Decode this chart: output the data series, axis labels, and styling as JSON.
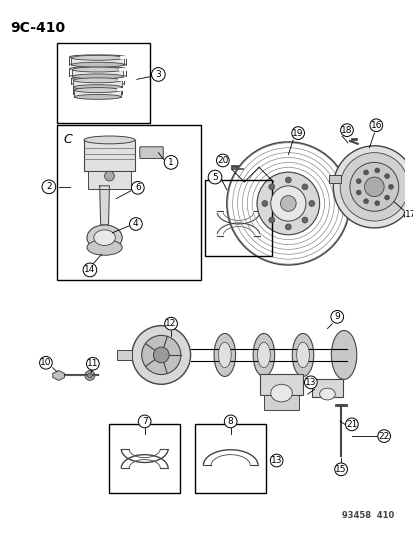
{
  "title_text": "9C-410",
  "footer_text": "93458  410",
  "bg": "#ffffff",
  "black": "#000000",
  "gray": "#666666",
  "lgray": "#aaaaaa",
  "dgray": "#444444"
}
